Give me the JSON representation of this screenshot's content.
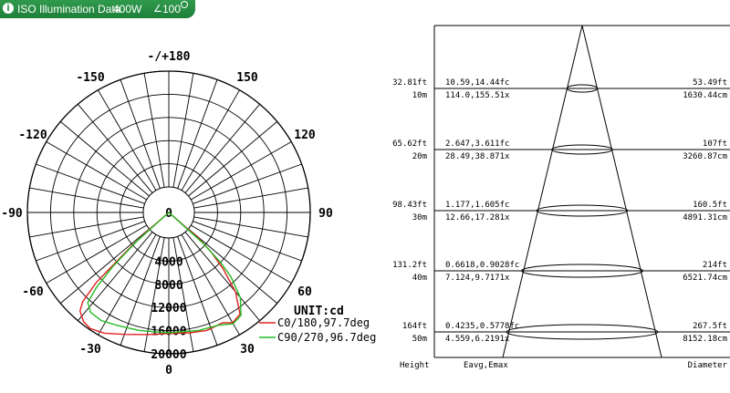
{
  "header": {
    "icon": "info-icon",
    "title": "ISO Illumination  Data",
    "wattage": "400W",
    "angle_icon": "angle-icon",
    "angle_text": "100"
  },
  "chart_data": [
    {
      "type": "polar",
      "angle_labels": [
        {
          "text": "-/+180",
          "angle": 180
        },
        {
          "text": "150",
          "angle": 150
        },
        {
          "text": "-150",
          "angle": -150
        },
        {
          "text": "120",
          "angle": 120
        },
        {
          "text": "-120",
          "angle": -120
        },
        {
          "text": "90",
          "angle": 90
        },
        {
          "text": "-90",
          "angle": -90
        },
        {
          "text": "60",
          "angle": 60
        },
        {
          "text": "-60",
          "angle": -60
        },
        {
          "text": "30",
          "angle": 30
        },
        {
          "text": "-30",
          "angle": -30
        },
        {
          "text": "0",
          "angle": 0
        }
      ],
      "radial_ticks": [
        "0",
        "4000",
        "8000",
        "12000",
        "16000",
        "20000"
      ],
      "rlim": [
        0,
        20000
      ],
      "unit_label": "UNIT:cd",
      "colors": {
        "c0": "#e02020",
        "c90": "#22bb22"
      },
      "series": [
        {
          "name": "C0/180,97.7deg",
          "color": "#e02020",
          "points": [
            [
              -50,
              0
            ],
            [
              -49,
              600
            ],
            [
              -48,
              4000
            ],
            [
              -46,
              13000
            ],
            [
              -44,
              17000
            ],
            [
              -42,
              18500
            ],
            [
              -38,
              19500
            ],
            [
              -34,
              19800
            ],
            [
              -28,
              19200
            ],
            [
              -20,
              18000
            ],
            [
              -10,
              17000
            ],
            [
              0,
              16500
            ],
            [
              10,
              16700
            ],
            [
              18,
              17000
            ],
            [
              26,
              16800
            ],
            [
              30,
              17600
            ],
            [
              35,
              17000
            ],
            [
              40,
              13500
            ],
            [
              44,
              9000
            ],
            [
              47,
              5500
            ],
            [
              49,
              2500
            ],
            [
              50,
              0
            ]
          ]
        },
        {
          "name": "C90/270,96.7deg",
          "color": "#22bb22",
          "points": [
            [
              -49,
              0
            ],
            [
              -48,
              3000
            ],
            [
              -46,
              9000
            ],
            [
              -44,
              13500
            ],
            [
              -42,
              16500
            ],
            [
              -38,
              17500
            ],
            [
              -32,
              17600
            ],
            [
              -24,
              17000
            ],
            [
              -14,
              16600
            ],
            [
              0,
              16400
            ],
            [
              14,
              16600
            ],
            [
              24,
              16900
            ],
            [
              30,
              17800
            ],
            [
              35,
              17300
            ],
            [
              40,
              14800
            ],
            [
              44,
              11000
            ],
            [
              46,
              8000
            ],
            [
              48,
              3500
            ],
            [
              49,
              0
            ]
          ]
        }
      ]
    },
    {
      "type": "table",
      "headers": {
        "height": "Height",
        "eavg_emax": "Eavg,Emax",
        "diameter": "Diameter"
      },
      "rows": [
        {
          "height_ft": "32.81ft",
          "height_m": "10m",
          "fc": "10.59,14.44fc",
          "lx": "114.0,155.51x",
          "dia_ft": "53.49ft",
          "dia_cm": "1630.44cm"
        },
        {
          "height_ft": "65.62ft",
          "height_m": "20m",
          "fc": "2.647,3.611fc",
          "lx": "28.49,38.871x",
          "dia_ft": "107ft",
          "dia_cm": "3260.87cm"
        },
        {
          "height_ft": "98.43ft",
          "height_m": "30m",
          "fc": "1.177,1.605fc",
          "lx": "12.66,17.281x",
          "dia_ft": "160.5ft",
          "dia_cm": "4891.31cm"
        },
        {
          "height_ft": "131.2ft",
          "height_m": "40m",
          "fc": "0.6618,0.9028fc",
          "lx": "7.124,9.7171x",
          "dia_ft": "214ft",
          "dia_cm": "6521.74cm"
        },
        {
          "height_ft": "164ft",
          "height_m": "50m",
          "fc": "0.4235,0.5778fc",
          "lx": "4.559,6.2191x",
          "dia_ft": "267.5ft",
          "dia_cm": "8152.18cm"
        }
      ]
    }
  ]
}
